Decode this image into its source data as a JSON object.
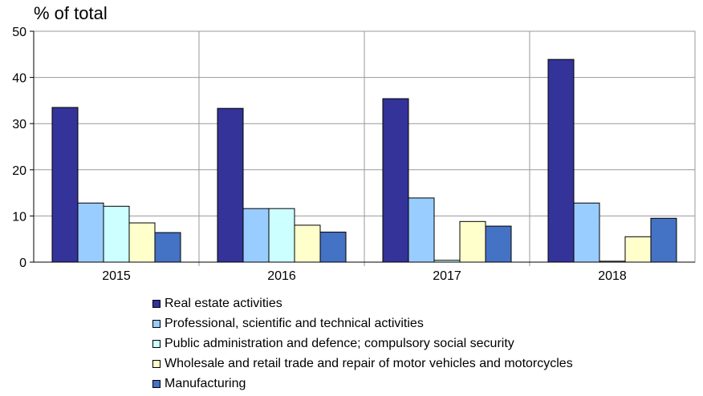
{
  "chart_data": {
    "type": "bar",
    "ylabel": "% of total",
    "ylim": [
      0,
      50
    ],
    "yticks": [
      0,
      10,
      20,
      30,
      40,
      50
    ],
    "grid": true,
    "legend_position": "bottom",
    "categories": [
      "2015",
      "2016",
      "2017",
      "2018"
    ],
    "series": [
      {
        "name": "Real estate activities",
        "color": "#333399",
        "values": [
          33.5,
          33.3,
          35.4,
          43.9
        ]
      },
      {
        "name": "Professional, scientific and technical activities",
        "color": "#99CCFF",
        "values": [
          12.8,
          11.6,
          13.9,
          12.8
        ]
      },
      {
        "name": "Public administration and defence; compulsory social security",
        "color": "#CCFFFF",
        "values": [
          12.1,
          11.6,
          0.4,
          0.2
        ]
      },
      {
        "name": "Wholesale and retail trade and repair of motor vehicles and motorcycles",
        "color": "#FFFFCC",
        "values": [
          8.5,
          8.0,
          8.8,
          5.5
        ]
      },
      {
        "name": "Manufacturing",
        "color": "#4472C4",
        "values": [
          6.4,
          6.5,
          7.8,
          9.5
        ]
      }
    ]
  }
}
